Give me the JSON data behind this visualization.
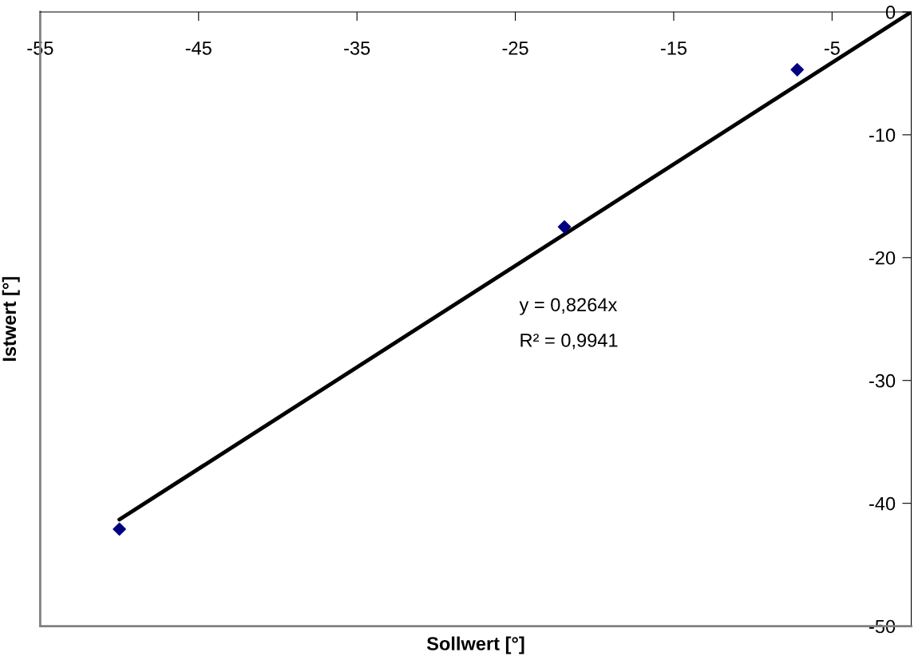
{
  "chart_data": {
    "type": "scatter",
    "xlabel": "Sollwert [°]",
    "ylabel": "Istwert [°]",
    "series": [
      {
        "color": "#000080",
        "marker": "diamond",
        "x": [
          -50,
          -21.9,
          -7.2
        ],
        "values": [
          -42.1,
          -17.5,
          -4.7
        ]
      },
      {
        "type": "line",
        "color": "#000000",
        "marker": "none",
        "line_style": "solid",
        "x": [
          -50,
          0
        ],
        "values": [
          -41.32,
          0
        ]
      }
    ],
    "xlim": [
      -55,
      0
    ],
    "xticks": [
      -55,
      -45,
      -35,
      -25,
      -15,
      -5
    ],
    "ylim": [
      -50,
      0
    ],
    "yticks": [
      0,
      -10,
      -20,
      -30,
      -40,
      -50
    ],
    "annotations": [
      "y = 0,8264x",
      "R² = 0,9941"
    ],
    "grid": false,
    "legend": false
  }
}
